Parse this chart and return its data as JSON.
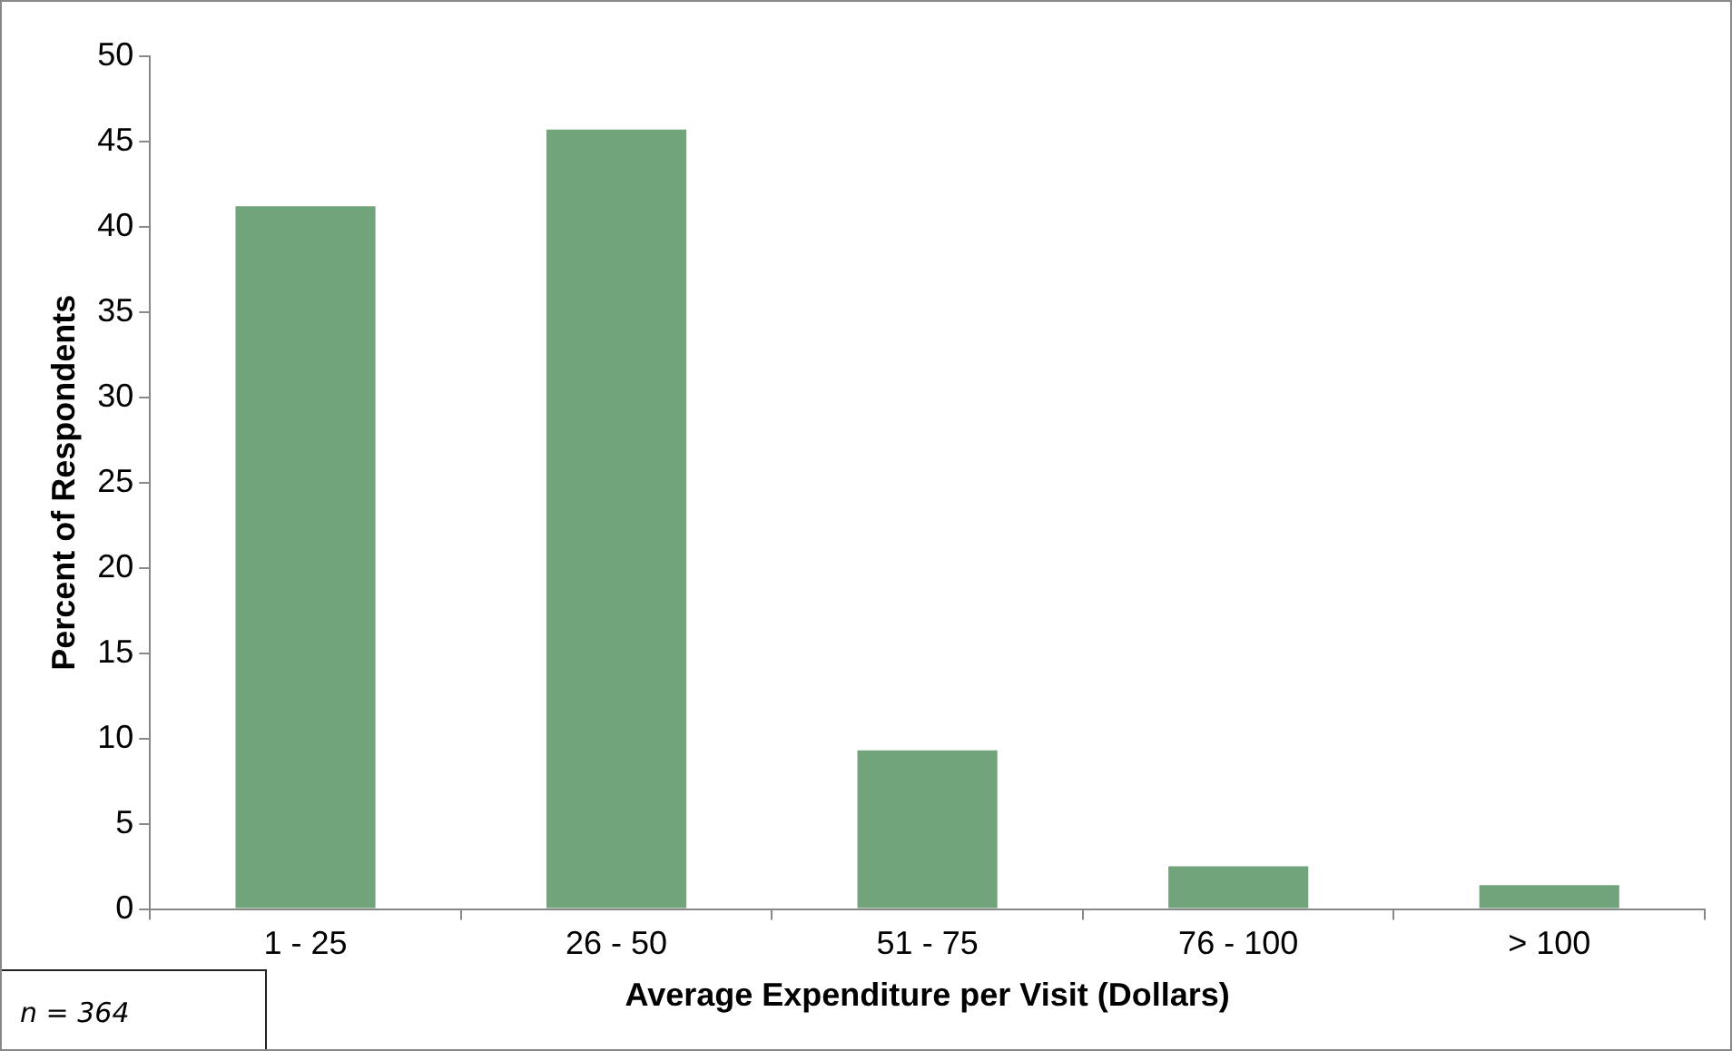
{
  "chart_data": {
    "type": "bar",
    "xlabel": "Average Expenditure per Visit (Dollars)",
    "ylabel": "Percent of Respondents",
    "categories": [
      "1 - 25",
      "26 - 50",
      "51 - 75",
      "76 - 100",
      "> 100"
    ],
    "values": [
      41.2,
      45.7,
      9.3,
      2.5,
      1.4
    ],
    "color": "#71a47a",
    "ylim": [
      0,
      50
    ],
    "yticks": [
      0,
      5,
      10,
      15,
      20,
      25,
      30,
      35,
      40,
      45,
      50
    ],
    "grid": false,
    "legend": false,
    "annotations": [
      "n = 364"
    ]
  }
}
